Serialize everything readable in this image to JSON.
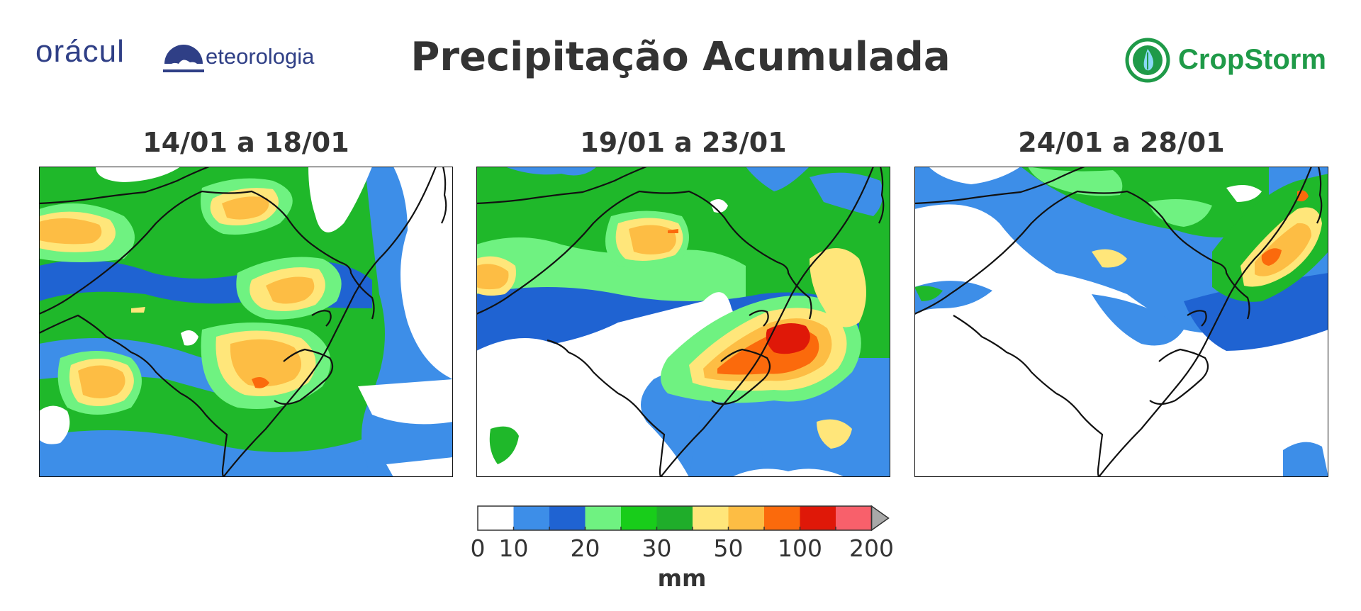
{
  "title": "Precipitação Acumulada",
  "logo_left": {
    "brand": "orácul",
    "tail": "eteorologia"
  },
  "logo_right": {
    "name": "CropStorm"
  },
  "colors": {
    "brand_left": "#2f3f86",
    "brand_right": "#1f9a48"
  },
  "panels": [
    {
      "title": "14/01 a 18/01"
    },
    {
      "title": "19/01 a 23/01"
    },
    {
      "title": "24/01 a 28/01"
    }
  ],
  "colorbar": {
    "unit": "mm",
    "tick_labels": [
      "0",
      "10",
      "20",
      "30",
      "50",
      "100",
      "200"
    ],
    "bins": [
      {
        "color": "#ffffff"
      },
      {
        "color": "#3d8ee8"
      },
      {
        "color": "#1f63d2"
      },
      {
        "color": "#6ff281"
      },
      {
        "color": "#18cd1a"
      },
      {
        "color": "#1fad2a"
      },
      {
        "color": "#ffe67a"
      },
      {
        "color": "#fdbd44"
      },
      {
        "color": "#fb6a0c"
      },
      {
        "color": "#df1808"
      },
      {
        "color": "#f8606b"
      }
    ],
    "overflow_color": "#a8a8a8"
  }
}
